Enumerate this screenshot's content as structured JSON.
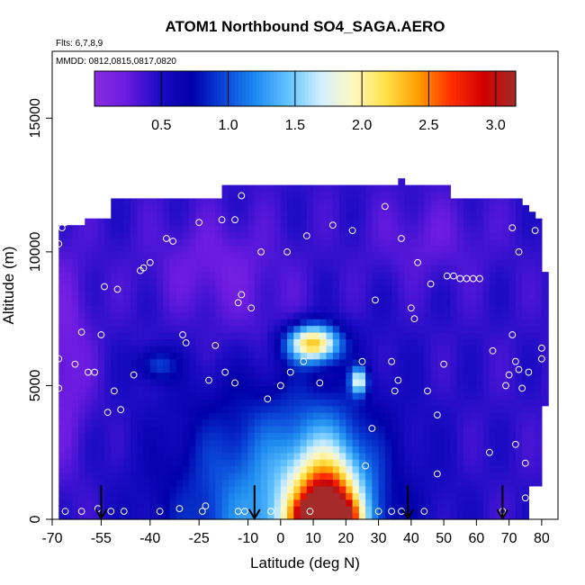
{
  "chart_data": {
    "type": "heatmap",
    "title": "ATOM1 Northbound SO4_SAGA.AERO",
    "subtitle_flights": "Flts: 6,7,8,9",
    "subtitle_dates": "MMDD: 0812,0815,0817,0820",
    "xlabel": "Latitude (deg N)",
    "ylabel": "Altitude (m)",
    "xlim": [
      -70,
      85
    ],
    "ylim": [
      0,
      17500
    ],
    "x_ticks": [
      -70,
      -55,
      -40,
      -25,
      -10,
      0,
      10,
      20,
      30,
      40,
      50,
      60,
      70,
      80
    ],
    "x_tick_labels": [
      "-70",
      "-55",
      "-40",
      "-25",
      "-10",
      "0",
      "10",
      "20",
      "30",
      "40",
      "50",
      "60",
      "70",
      "80"
    ],
    "y_ticks": [
      0,
      5000,
      10000,
      15000
    ],
    "y_tick_labels": [
      "0",
      "5000",
      "10000",
      "15000"
    ],
    "colorbar": {
      "range": [
        0,
        3.15
      ],
      "ticks": [
        0.5,
        1.0,
        1.5,
        2.0,
        2.5,
        3.0
      ],
      "tick_labels": [
        "0.5",
        "1.0",
        "1.5",
        "2.0",
        "2.5",
        "3.0"
      ],
      "colors": [
        "#8a2be2",
        "#6a1be0",
        "#1c0cc4",
        "#0000a8",
        "#0a46d8",
        "#1e8cf0",
        "#64c4ff",
        "#d2f0ff",
        "#fff8c0",
        "#ffe046",
        "#ff9c00",
        "#ff3000",
        "#d20000",
        "#a52a2a"
      ]
    },
    "curtain_outline": [
      [
        -68,
        0
      ],
      [
        75,
        0
      ],
      [
        76,
        1200
      ],
      [
        80,
        1200
      ],
      [
        82,
        7500
      ],
      [
        80,
        11000
      ],
      [
        74,
        12000
      ],
      [
        53,
        12000
      ],
      [
        53,
        12500
      ],
      [
        38,
        12500
      ],
      [
        38,
        13000
      ],
      [
        36,
        12500
      ],
      [
        -17,
        12500
      ],
      [
        -17,
        12000
      ],
      [
        -52,
        12000
      ],
      [
        -52,
        11300
      ],
      [
        -58,
        11300
      ],
      [
        -60,
        11000
      ],
      [
        -68,
        10900
      ],
      [
        -68,
        6500
      ],
      [
        -69,
        6000
      ],
      [
        -68,
        4000
      ]
    ],
    "features": [
      {
        "x": 0,
        "y": 0,
        "sx": 33,
        "sy": 5000,
        "value": 0.9
      },
      {
        "x": 14,
        "y": 0,
        "sx": 12,
        "sy": 3000,
        "value": 1.4
      },
      {
        "x": 14,
        "y": 0,
        "sx": 8,
        "sy": 1600,
        "value": 1.5
      },
      {
        "x": 14,
        "y": 200,
        "sx": 8,
        "sy": 500,
        "value": 1.3
      },
      {
        "x": 10,
        "y": 6600,
        "sx": 8,
        "sy": 700,
        "value": 1.8
      },
      {
        "x": 24,
        "y": 5200,
        "sx": 2.5,
        "sy": 500,
        "value": 1.2
      },
      {
        "x": -38,
        "y": 5800,
        "sx": 6,
        "sy": 600,
        "value": 0.5
      },
      {
        "x": -66,
        "y": 6000,
        "sx": 8,
        "sy": 4000,
        "value": -0.25
      },
      {
        "x": -20,
        "y": 9500,
        "sx": 20,
        "sy": 1800,
        "value": -0.2
      },
      {
        "x": 45,
        "y": 10500,
        "sx": 18,
        "sy": 1500,
        "value": -0.15
      },
      {
        "x": -5,
        "y": 7000,
        "sx": 20,
        "sy": 2000,
        "value": -0.15
      }
    ],
    "observations": [
      [
        -67,
        10900
      ],
      [
        -66,
        11100
      ],
      [
        -65,
        11200
      ],
      [
        -68,
        10300
      ],
      [
        -68,
        6000
      ],
      [
        -68,
        4900
      ],
      [
        -61,
        7000
      ],
      [
        -63,
        5800
      ],
      [
        -59,
        5500
      ],
      [
        -57,
        5500
      ],
      [
        -55,
        6900
      ],
      [
        -54,
        8700
      ],
      [
        -50,
        8600
      ],
      [
        -53,
        4000
      ],
      [
        -49,
        4100
      ],
      [
        -51,
        4800
      ],
      [
        -45,
        5400
      ],
      [
        -43,
        9300
      ],
      [
        -42,
        9400
      ],
      [
        -40,
        9600
      ],
      [
        -35,
        10500
      ],
      [
        -33,
        10400
      ],
      [
        -30,
        6900
      ],
      [
        -29,
        6600
      ],
      [
        -25,
        11100
      ],
      [
        -22,
        5200
      ],
      [
        -20,
        6500
      ],
      [
        -18,
        11200
      ],
      [
        -14,
        11200
      ],
      [
        -13,
        8100
      ],
      [
        -12,
        8400
      ],
      [
        -9,
        7900
      ],
      [
        -17,
        5500
      ],
      [
        -14,
        5100
      ],
      [
        -12,
        12100
      ],
      [
        -6,
        10000
      ],
      [
        2,
        10000
      ],
      [
        8,
        10600
      ],
      [
        7,
        5900
      ],
      [
        3,
        5500
      ],
      [
        0,
        5000
      ],
      [
        -4,
        4500
      ],
      [
        12,
        5100
      ],
      [
        16,
        11000
      ],
      [
        22,
        10800
      ],
      [
        25,
        5900
      ],
      [
        28,
        3400
      ],
      [
        29,
        8200
      ],
      [
        26,
        2000
      ],
      [
        32,
        11700
      ],
      [
        34,
        5900
      ],
      [
        35,
        4800
      ],
      [
        36,
        5200
      ],
      [
        37,
        10500
      ],
      [
        40,
        7900
      ],
      [
        41,
        7500
      ],
      [
        42,
        9600
      ],
      [
        45,
        4800
      ],
      [
        46,
        8800
      ],
      [
        48,
        3900
      ],
      [
        48,
        1700
      ],
      [
        50,
        5800
      ],
      [
        51,
        9100
      ],
      [
        53,
        9100
      ],
      [
        55,
        9000
      ],
      [
        57,
        9000
      ],
      [
        59,
        9000
      ],
      [
        61,
        9000
      ],
      [
        64,
        2500
      ],
      [
        65,
        6300
      ],
      [
        69,
        5000
      ],
      [
        70,
        5400
      ],
      [
        72,
        5900
      ],
      [
        73,
        5600
      ],
      [
        71,
        6900
      ],
      [
        74,
        4900
      ],
      [
        76,
        5500
      ],
      [
        75,
        2100
      ],
      [
        72,
        2800
      ],
      [
        75,
        800
      ],
      [
        77,
        11900
      ],
      [
        71,
        10900
      ],
      [
        73,
        10000
      ],
      [
        78,
        10800
      ],
      [
        80,
        6400
      ],
      [
        80,
        6000
      ],
      [
        81,
        800
      ],
      [
        -61,
        300
      ],
      [
        -56,
        400
      ],
      [
        -52,
        300
      ],
      [
        -48,
        300
      ],
      [
        -37,
        300
      ],
      [
        -31,
        400
      ],
      [
        -24,
        300
      ],
      [
        -23,
        500
      ],
      [
        -13,
        300
      ],
      [
        -11,
        300
      ],
      [
        -3,
        300
      ],
      [
        9,
        300
      ],
      [
        30,
        300
      ],
      [
        34,
        300
      ],
      [
        37,
        300
      ],
      [
        44,
        300
      ],
      [
        68,
        300
      ],
      [
        -66,
        300
      ]
    ],
    "flight_markers": [
      -55,
      -8,
      39,
      68
    ]
  }
}
